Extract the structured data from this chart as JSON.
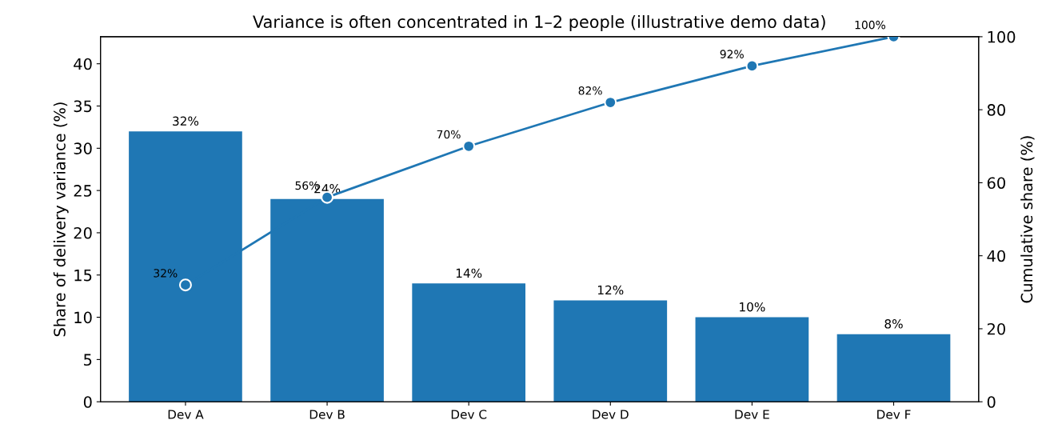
{
  "chart_data": {
    "type": "bar",
    "title": "Variance is often concentrated in 1–2 people (illustrative demo data)",
    "ylabel": "Share of delivery variance (%)",
    "y2label": "Cumulative share (%)",
    "categories": [
      "Dev A",
      "Dev B",
      "Dev C",
      "Dev D",
      "Dev E",
      "Dev F"
    ],
    "series": [
      {
        "color": "#1f77b4",
        "values": [
          32,
          24,
          14,
          12,
          10,
          8
        ],
        "value_labels": [
          "32%",
          "24%",
          "14%",
          "12%",
          "10%",
          "8%"
        ]
      },
      {
        "type": "line",
        "axis": "y2",
        "color": "#1f77b4",
        "marker": "circle",
        "values": [
          32,
          56,
          70,
          82,
          92,
          100
        ],
        "value_labels": [
          "32%",
          "56%",
          "70%",
          "82%",
          "92%",
          "100%"
        ]
      }
    ],
    "ylim": [
      0,
      43.2
    ],
    "yticks": [
      0,
      5,
      10,
      15,
      20,
      25,
      30,
      35,
      40
    ],
    "y2lim": [
      0,
      100
    ],
    "y2ticks": [
      0,
      20,
      40,
      60,
      80,
      100
    ],
    "grid": false,
    "legend": false
  }
}
